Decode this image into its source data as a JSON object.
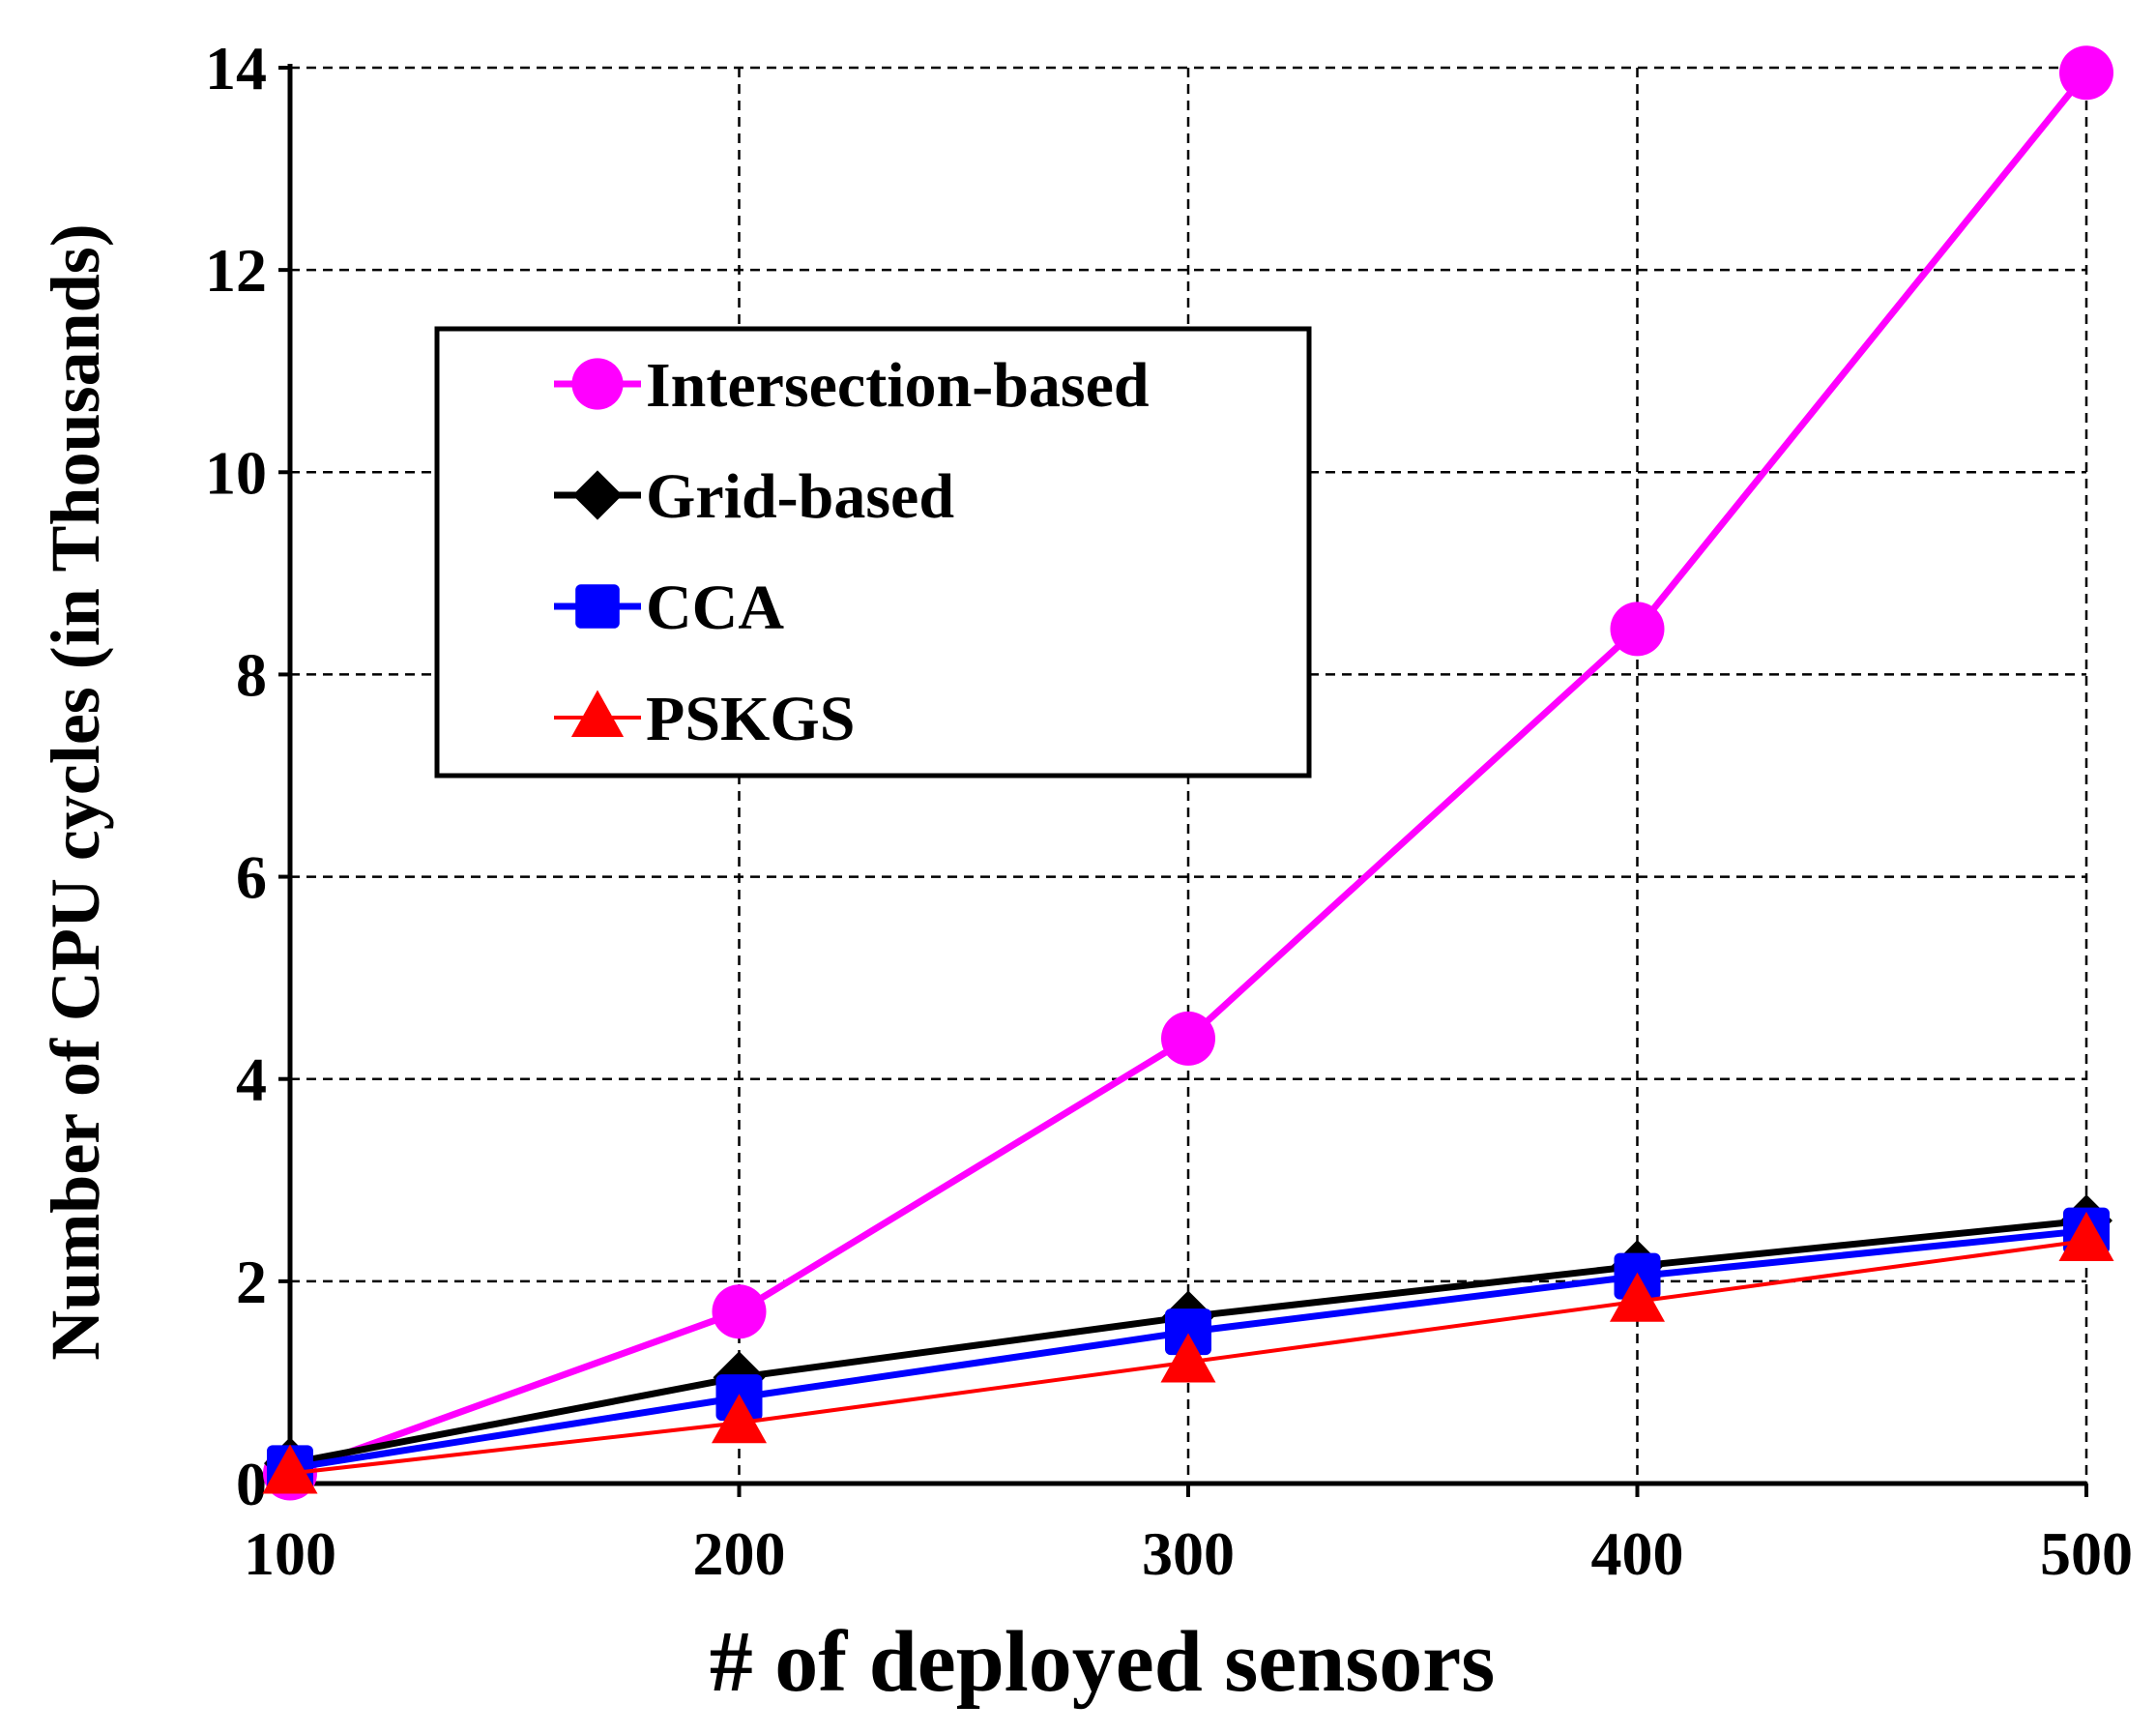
{
  "chart_data": {
    "type": "line",
    "title": "",
    "xlabel": "# of deployed sensors",
    "ylabel": "Number of CPU cycles (in Thousands)",
    "x": [
      100,
      200,
      300,
      400,
      500
    ],
    "xlim": [
      100,
      500
    ],
    "ylim": [
      0,
      14
    ],
    "x_ticks": [
      "100",
      "200",
      "300",
      "400",
      "500"
    ],
    "y_ticks": [
      "0",
      "2",
      "4",
      "6",
      "8",
      "10",
      "12",
      "14"
    ],
    "grid": true,
    "legend_position": "upper-left",
    "series": [
      {
        "name": "Intersection-based",
        "color": "#ff00ff",
        "marker": "circle",
        "values": [
          0.1,
          1.7,
          4.4,
          8.45,
          13.95
        ]
      },
      {
        "name": "Grid-based",
        "color": "#000000",
        "marker": "diamond",
        "values": [
          0.2,
          1.05,
          1.65,
          2.15,
          2.6
        ]
      },
      {
        "name": "CCA",
        "color": "#0000ff",
        "marker": "square",
        "values": [
          0.15,
          0.85,
          1.5,
          2.05,
          2.5
        ]
      },
      {
        "name": "PSKGS",
        "color": "#ff0000",
        "marker": "triangle",
        "values": [
          0.1,
          0.6,
          1.2,
          1.8,
          2.4
        ]
      }
    ]
  }
}
